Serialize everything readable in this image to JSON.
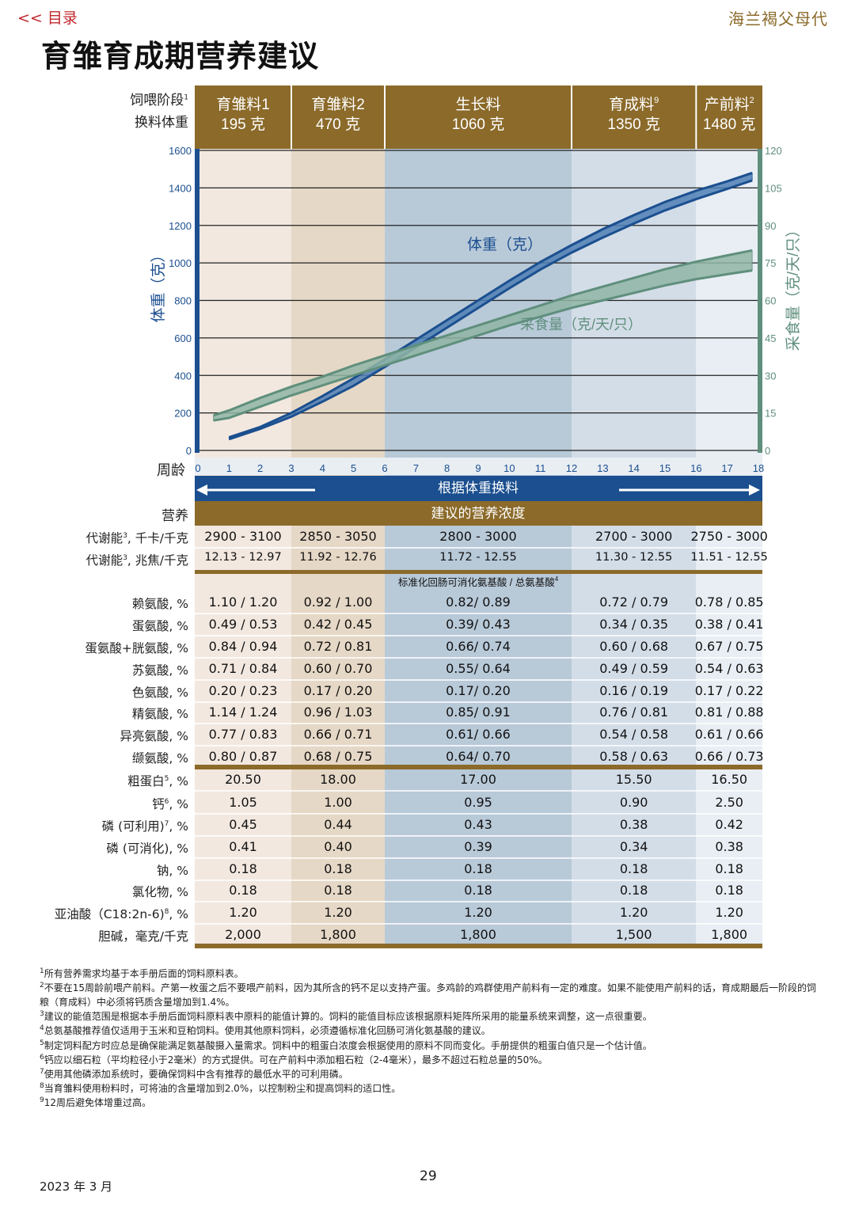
{
  "header": {
    "toc_link": "<< 目录",
    "brand": "海兰褐父母代",
    "title": "育雏育成期营养建议"
  },
  "stage_header": {
    "label_line1": "饲喂阶段",
    "label_sup": "1",
    "label_line2": "换料体重"
  },
  "stages": [
    {
      "name": "育雏料1",
      "sup": "",
      "weight": "195 克"
    },
    {
      "name": "育雏料2",
      "sup": "",
      "weight": "470 克"
    },
    {
      "name": "生长料",
      "sup": "",
      "weight": "1060 克"
    },
    {
      "name": "育成料",
      "sup": "9",
      "weight": "1350 克"
    },
    {
      "name": "产前料",
      "sup": "2",
      "weight": "1480 克"
    }
  ],
  "chart_data": {
    "type": "line",
    "xlabel": "周龄",
    "ylabel_left": "体重（克）",
    "ylabel_right": "采食量（克/天/只）",
    "x_ticks": [
      "0",
      "1",
      "2",
      "3",
      "4",
      "5",
      "6",
      "7",
      "8",
      "9",
      "10",
      "11",
      "12",
      "13",
      "14",
      "15",
      "16",
      "17",
      "18"
    ],
    "y_left_ticks": [
      "0",
      "200",
      "400",
      "600",
      "800",
      "1000",
      "1200",
      "1400",
      "1600"
    ],
    "y_right_ticks": [
      "0",
      "15",
      "30",
      "45",
      "60",
      "75",
      "90",
      "105",
      "120"
    ],
    "xlim": [
      0,
      18
    ],
    "ylim_left": [
      0,
      1600
    ],
    "ylim_right": [
      0,
      120
    ],
    "stage_boundaries_weeks": [
      3,
      6,
      12,
      16
    ],
    "series": [
      {
        "name": "体重（克）",
        "axis": "left",
        "color": "#1b4f8f",
        "x": [
          1,
          2,
          3,
          4,
          5,
          6,
          7,
          8,
          9,
          10,
          11,
          12,
          13,
          14,
          15,
          16,
          17,
          17.8
        ],
        "lower": [
          60,
          115,
          180,
          260,
          345,
          445,
          550,
          655,
          760,
          865,
          965,
          1055,
          1135,
          1210,
          1280,
          1340,
          1395,
          1440
        ],
        "upper": [
          70,
          125,
          200,
          290,
          385,
          485,
          590,
          695,
          800,
          905,
          1005,
          1095,
          1180,
          1255,
          1325,
          1385,
          1435,
          1480
        ]
      },
      {
        "name": "采食量（克/天/只）",
        "axis": "right",
        "color": "#5f8f7c",
        "x": [
          0.5,
          1,
          2,
          3,
          4,
          5,
          6,
          7,
          8,
          9,
          10,
          11,
          12,
          13,
          14,
          15,
          16,
          17,
          17.8
        ],
        "lower": [
          12,
          13,
          17.5,
          22,
          26,
          30,
          34,
          38,
          42,
          46,
          50,
          53.5,
          57,
          60,
          63,
          66,
          68.5,
          70.5,
          72
        ],
        "upper": [
          14,
          16,
          21,
          25.5,
          29.5,
          34,
          38,
          42,
          46,
          50,
          54,
          58,
          62,
          65.5,
          69,
          72.5,
          75.5,
          78,
          80
        ]
      }
    ],
    "label_body_weight": "体重（克）",
    "label_feed_intake": "采食量（克/天/只）",
    "arrow_banner": "根据体重换料"
  },
  "table": {
    "nutrition_label": "营养",
    "nutrition_banner": "建议的营养浓度",
    "amino_banner": "标准化回肠可消化氨基酸  / 总氨基酸",
    "amino_banner_sup": "4",
    "energy_rows": [
      {
        "label": "代谢能",
        "sup": "3",
        "unit": ", 千卡/千克",
        "values": [
          "2900 - 3100",
          "2850 - 3050",
          "2800 - 3000",
          "2700 - 3000",
          "2750 - 3000"
        ]
      },
      {
        "label": "代谢能",
        "sup": "3",
        "unit": ", 兆焦/千克",
        "values": [
          "12.13 - 12.97",
          "11.92 - 12.76",
          "11.72 - 12.55",
          "11.30 - 12.55",
          "11.51 - 12.55"
        ]
      }
    ],
    "amino_rows": [
      {
        "label": "赖氨酸, %",
        "values": [
          "1.10 / 1.20",
          "0.92 / 1.00",
          "0.82/ 0.89",
          "0.72 / 0.79",
          "0.78 / 0.85"
        ]
      },
      {
        "label": "蛋氨酸, %",
        "values": [
          "0.49 / 0.53",
          "0.42 / 0.45",
          "0.39/ 0.43",
          "0.34 / 0.35",
          "0.38 / 0.41"
        ]
      },
      {
        "label": "蛋氨酸+胱氨酸, %",
        "values": [
          "0.84 / 0.94",
          "0.72 / 0.81",
          "0.66/ 0.74",
          "0.60 / 0.68",
          "0.67 / 0.75"
        ]
      },
      {
        "label": "苏氨酸, %",
        "values": [
          "0.71 / 0.84",
          "0.60 / 0.70",
          "0.55/ 0.64",
          "0.49 / 0.59",
          "0.54 / 0.63"
        ]
      },
      {
        "label": "色氨酸, %",
        "values": [
          "0.20 / 0.23",
          "0.17 / 0.20",
          "0.17/ 0.20",
          "0.16 / 0.19",
          "0.17 / 0.22"
        ]
      },
      {
        "label": "精氨酸, %",
        "values": [
          "1.14 / 1.24",
          "0.96 / 1.03",
          "0.85/ 0.91",
          "0.76 / 0.81",
          "0.81 / 0.88"
        ]
      },
      {
        "label": "异亮氨酸, %",
        "values": [
          "0.77 / 0.83",
          "0.66 / 0.71",
          "0.61/ 0.66",
          "0.54 / 0.58",
          "0.61 / 0.66"
        ]
      },
      {
        "label": "缬氨酸, %",
        "values": [
          "0.80 / 0.87",
          "0.68 / 0.75",
          "0.64/ 0.70",
          "0.58 / 0.63",
          "0.66 / 0.73"
        ]
      }
    ],
    "other_rows": [
      {
        "label": "粗蛋白",
        "sup": "5",
        "unit": ", %",
        "values": [
          "20.50",
          "18.00",
          "17.00",
          "15.50",
          "16.50"
        ]
      },
      {
        "label": "钙",
        "sup": "6",
        "unit": ", %",
        "values": [
          "1.05",
          "1.00",
          "0.95",
          "0.90",
          "2.50"
        ]
      },
      {
        "label": "磷 (可利用)",
        "sup": "7",
        "unit": ", %",
        "values": [
          "0.45",
          "0.44",
          "0.43",
          "0.38",
          "0.42"
        ]
      },
      {
        "label": "磷 (可消化), %",
        "sup": "",
        "unit": "",
        "values": [
          "0.41",
          "0.40",
          "0.39",
          "0.34",
          "0.38"
        ]
      },
      {
        "label": "钠, %",
        "sup": "",
        "unit": "",
        "values": [
          "0.18",
          "0.18",
          "0.18",
          "0.18",
          "0.18"
        ]
      },
      {
        "label": "氯化物, %",
        "sup": "",
        "unit": "",
        "values": [
          "0.18",
          "0.18",
          "0.18",
          "0.18",
          "0.18"
        ]
      },
      {
        "label": "亚油酸（C18:2n-6)",
        "sup": "8",
        "unit": ", %",
        "values": [
          "1.20",
          "1.20",
          "1.20",
          "1.20",
          "1.20"
        ]
      },
      {
        "label": "胆碱，毫克/千克",
        "sup": "",
        "unit": "",
        "values": [
          "2,000",
          "1,800",
          "1,800",
          "1,500",
          "1,800"
        ]
      }
    ]
  },
  "footnotes": [
    {
      "n": "1",
      "text": "所有营养需求均基于本手册后面的饲料原料表。"
    },
    {
      "n": "2",
      "text": "不要在15周龄前喂产前料。产第一枚蛋之后不要喂产前料，因为其所含的钙不足以支持产蛋。多鸡龄的鸡群使用产前料有一定的难度。如果不能使用产前料的话，育成期最后一阶段的饲粮（育成料）中必须将钙质含量增加到1.4%。"
    },
    {
      "n": "3",
      "text": "建议的能值范围是根据本手册后面饲料原料表中原料的能值计算的。饲料的能值目标应该根据原料矩阵所采用的能量系统来调整，这一点很重要。"
    },
    {
      "n": "4",
      "text": "总氨基酸推荐值仅适用于玉米和豆粕饲料。使用其他原料饲料，必须遵循标准化回肠可消化氨基酸的建议。"
    },
    {
      "n": "5",
      "text": "制定饲料配方时应总是确保能满足氨基酸摄入量需求。饲料中的粗蛋白浓度会根据使用的原料不同而变化。手册提供的粗蛋白值只是一个估计值。"
    },
    {
      "n": "6",
      "text": "钙应以细石粒（平均粒径小于2毫米）的方式提供。可在产前料中添加粗石粒（2-4毫米），最多不超过石粒总量的50%。"
    },
    {
      "n": "7",
      "text": "使用其他磷添加系统时，要确保饲料中含有推荐的最低水平的可利用磷。"
    },
    {
      "n": "8",
      "text": "当育雏料使用粉料时，可将油的含量增加到2.0%，以控制粉尘和提高饲料的适口性。"
    },
    {
      "n": "9",
      "text": "12周后避免体增重过高。"
    }
  ],
  "footer": {
    "page_number": "29",
    "date": "2023 年 3 月"
  },
  "colors": {
    "gold": "#8b6a2a",
    "navy": "#1b4f8f",
    "sage": "#5f8f7c",
    "red": "#c0272d"
  }
}
